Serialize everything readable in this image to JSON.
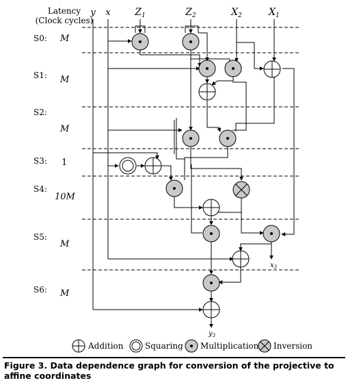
{
  "header": {
    "latency_line1": "Latency",
    "latency_line2": "(Clock cycles)",
    "inputs": {
      "y": "y",
      "x": "x",
      "z1": "Z",
      "z1_sub": "1",
      "z2": "Z",
      "z2_sub": "2",
      "x2": "X",
      "x2_sub": "2",
      "x1": "X",
      "x1_sub": "1"
    }
  },
  "stages": [
    {
      "label": "S0:",
      "latency": "M"
    },
    {
      "label": "S1:",
      "latency": "M"
    },
    {
      "label": "S2:",
      "latency": "M"
    },
    {
      "label": "S3:",
      "latency": "1"
    },
    {
      "label": "S4:",
      "latency": "10M"
    },
    {
      "label": "S5:",
      "latency": "M"
    },
    {
      "label": "S6:",
      "latency": "M"
    }
  ],
  "outputs": {
    "x3": "x",
    "x3_sub": "3",
    "y3": "y",
    "y3_sub": "3"
  },
  "legend": {
    "addition": "Addition",
    "squaring": "Squaring",
    "multiplication": "Multiplication",
    "inversion": "Inversion"
  },
  "caption": "Figure 3.  Data dependence graph for conversion of the projective to affine coordinates"
}
